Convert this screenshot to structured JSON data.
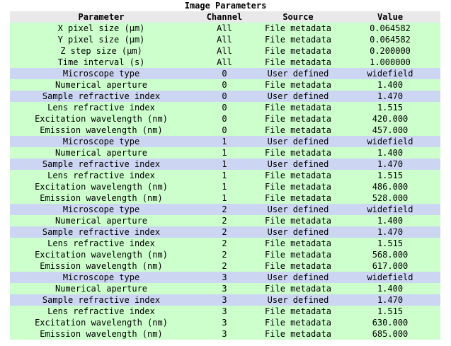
{
  "title": "Image Parameters",
  "columns": [
    "Parameter",
    "Channel",
    "Source",
    "Value"
  ],
  "colors": {
    "row_file_metadata": "#ccffcc",
    "row_user_defined": "#ccd5f2",
    "header_bg": "#e9e9e9"
  },
  "rows": [
    {
      "parameter": "X pixel size (μm)",
      "channel": "All",
      "source": "File metadata",
      "value": "0.064582"
    },
    {
      "parameter": "Y pixel size (μm)",
      "channel": "All",
      "source": "File metadata",
      "value": "0.064582"
    },
    {
      "parameter": "Z step size  (μm)",
      "channel": "All",
      "source": "File metadata",
      "value": "0.200000"
    },
    {
      "parameter": "Time interval (s)",
      "channel": "All",
      "source": "File metadata",
      "value": "1.000000"
    },
    {
      "parameter": "Microscope type",
      "channel": "0",
      "source": "User defined",
      "value": "widefield"
    },
    {
      "parameter": "Numerical aperture",
      "channel": "0",
      "source": "File metadata",
      "value": "1.400"
    },
    {
      "parameter": "Sample refractive index",
      "channel": "0",
      "source": "User defined",
      "value": "1.470"
    },
    {
      "parameter": "Lens refractive index",
      "channel": "0",
      "source": "File metadata",
      "value": "1.515"
    },
    {
      "parameter": "Excitation wavelength (nm)",
      "channel": "0",
      "source": "File metadata",
      "value": "420.000"
    },
    {
      "parameter": "Emission wavelength (nm)",
      "channel": "0",
      "source": "File metadata",
      "value": "457.000"
    },
    {
      "parameter": "Microscope type",
      "channel": "1",
      "source": "User defined",
      "value": "widefield"
    },
    {
      "parameter": "Numerical aperture",
      "channel": "1",
      "source": "File metadata",
      "value": "1.400"
    },
    {
      "parameter": "Sample refractive index",
      "channel": "1",
      "source": "User defined",
      "value": "1.470"
    },
    {
      "parameter": "Lens refractive index",
      "channel": "1",
      "source": "File metadata",
      "value": "1.515"
    },
    {
      "parameter": "Excitation wavelength (nm)",
      "channel": "1",
      "source": "File metadata",
      "value": "486.000"
    },
    {
      "parameter": "Emission wavelength (nm)",
      "channel": "1",
      "source": "File metadata",
      "value": "528.000"
    },
    {
      "parameter": "Microscope type",
      "channel": "2",
      "source": "User defined",
      "value": "widefield"
    },
    {
      "parameter": "Numerical aperture",
      "channel": "2",
      "source": "File metadata",
      "value": "1.400"
    },
    {
      "parameter": "Sample refractive index",
      "channel": "2",
      "source": "User defined",
      "value": "1.470"
    },
    {
      "parameter": "Lens refractive index",
      "channel": "2",
      "source": "File metadata",
      "value": "1.515"
    },
    {
      "parameter": "Excitation wavelength (nm)",
      "channel": "2",
      "source": "File metadata",
      "value": "568.000"
    },
    {
      "parameter": "Emission wavelength (nm)",
      "channel": "2",
      "source": "File metadata",
      "value": "617.000"
    },
    {
      "parameter": "Microscope type",
      "channel": "3",
      "source": "User defined",
      "value": "widefield"
    },
    {
      "parameter": "Numerical aperture",
      "channel": "3",
      "source": "File metadata",
      "value": "1.400"
    },
    {
      "parameter": "Sample refractive index",
      "channel": "3",
      "source": "User defined",
      "value": "1.470"
    },
    {
      "parameter": "Lens refractive index",
      "channel": "3",
      "source": "File metadata",
      "value": "1.515"
    },
    {
      "parameter": "Excitation wavelength (nm)",
      "channel": "3",
      "source": "File metadata",
      "value": "630.000"
    },
    {
      "parameter": "Emission wavelength (nm)",
      "channel": "3",
      "source": "File metadata",
      "value": "685.000"
    }
  ]
}
